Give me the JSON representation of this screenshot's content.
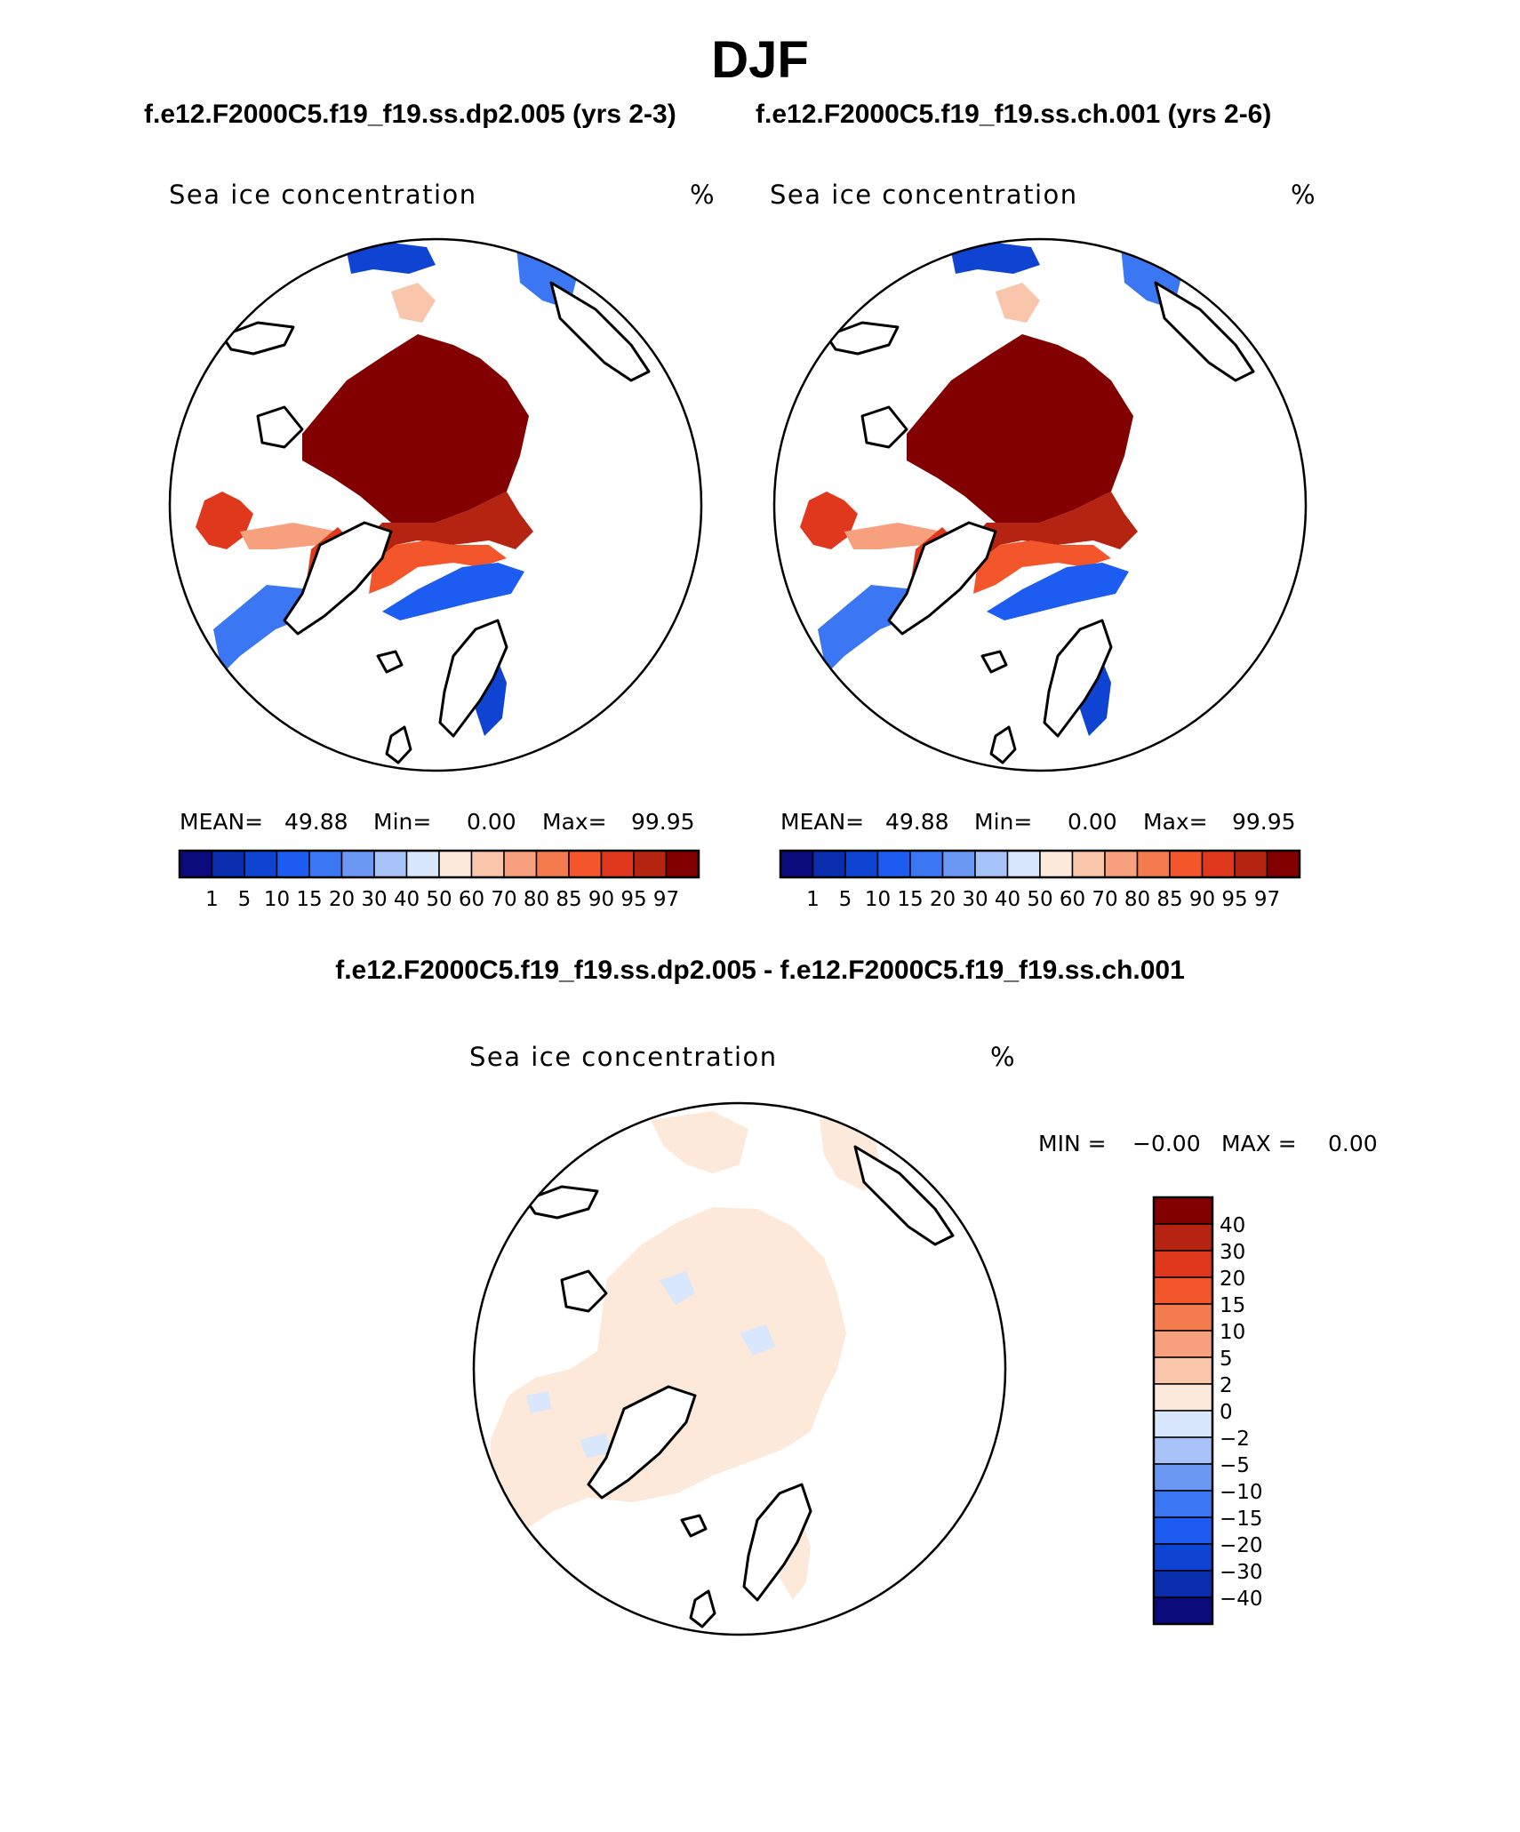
{
  "figure": {
    "title": "DJF",
    "case_a_title": "f.e12.F2000C5.f19_f19.ss.dp2.005 (yrs 2-3)",
    "case_b_title": "f.e12.F2000C5.f19_f19.ss.ch.001 (yrs 2-6)",
    "diff_title": "f.e12.F2000C5.f19_f19.ss.dp2.005 - f.e12.F2000C5.f19_f19.ss.ch.001"
  },
  "chart_data": [
    {
      "type": "heatmap",
      "projection": "polar-stereographic-north",
      "variable": "Sea ice concentration",
      "units": "%",
      "stats": {
        "mean_label": "MEAN=",
        "mean": "49.88",
        "min_label": "Min=",
        "min": "0.00",
        "max_label": "Max=",
        "max": "99.95"
      },
      "levels": [
        "1",
        "5",
        "10",
        "15",
        "20",
        "30",
        "40",
        "50",
        "60",
        "70",
        "80",
        "85",
        "90",
        "95",
        "97"
      ],
      "colors": [
        "#0a0a7a",
        "#0a2dae",
        "#0f44d2",
        "#1d5cf0",
        "#3b77f2",
        "#6b98f2",
        "#a8c3f7",
        "#d8e7fb",
        "#fde9d9",
        "#f9c5ab",
        "#f6a07e",
        "#f37b4e",
        "#f2562a",
        "#e0381c",
        "#b52410",
        "#820000"
      ]
    },
    {
      "type": "heatmap",
      "projection": "polar-stereographic-north",
      "variable": "Sea ice concentration",
      "units": "%",
      "stats": {
        "mean_label": "MEAN=",
        "mean": "49.88",
        "min_label": "Min=",
        "min": "0.00",
        "max_label": "Max=",
        "max": "99.95"
      },
      "levels": [
        "1",
        "5",
        "10",
        "15",
        "20",
        "30",
        "40",
        "50",
        "60",
        "70",
        "80",
        "85",
        "90",
        "95",
        "97"
      ],
      "colors": [
        "#0a0a7a",
        "#0a2dae",
        "#0f44d2",
        "#1d5cf0",
        "#3b77f2",
        "#6b98f2",
        "#a8c3f7",
        "#d8e7fb",
        "#fde9d9",
        "#f9c5ab",
        "#f6a07e",
        "#f37b4e",
        "#f2562a",
        "#e0381c",
        "#b52410",
        "#820000"
      ]
    },
    {
      "type": "heatmap",
      "projection": "polar-stereographic-north",
      "variable": "Sea ice concentration",
      "units": "%",
      "stats": {
        "min_label": "MIN =",
        "min": "−0.00",
        "max_label": "MAX =",
        "max": "0.00"
      },
      "levels": [
        "−40",
        "−30",
        "−20",
        "−15",
        "−10",
        "−5",
        "−2",
        "0",
        "2",
        "5",
        "10",
        "15",
        "20",
        "30",
        "40"
      ],
      "colors": [
        "#0a0a7a",
        "#0a2dae",
        "#0f44d2",
        "#1d5cf0",
        "#3b77f2",
        "#6b98f2",
        "#a8c3f7",
        "#d8e7fb",
        "#fde9d9",
        "#f9c5ab",
        "#f6a07e",
        "#f37b4e",
        "#f2562a",
        "#e0381c",
        "#b52410",
        "#820000"
      ]
    }
  ]
}
